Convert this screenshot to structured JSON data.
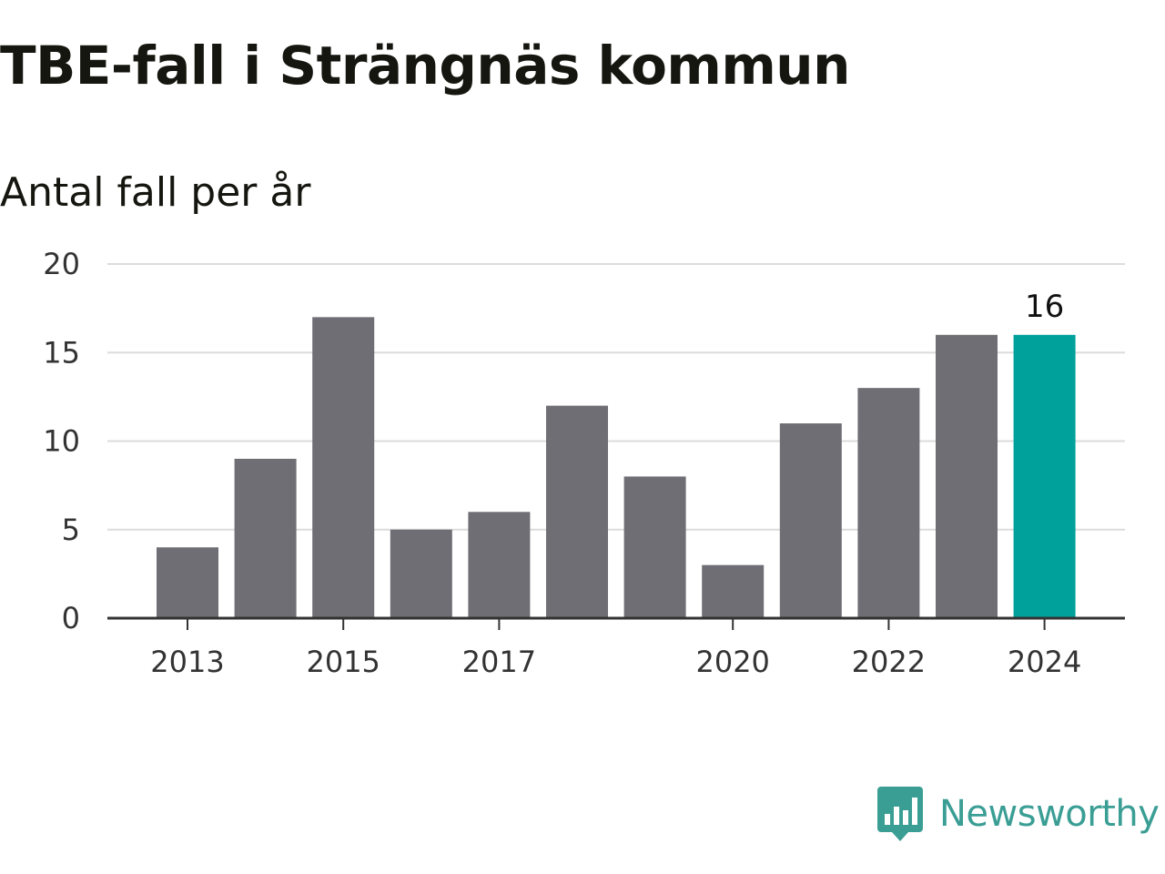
{
  "chart_data": {
    "type": "bar",
    "title": "TBE-fall i Strängnäs kommun",
    "subtitle": "Antal fall per år",
    "xlabel": "",
    "ylabel": "",
    "categories": [
      "2013",
      "2014",
      "2015",
      "2016",
      "2017",
      "2018",
      "2019",
      "2020",
      "2021",
      "2022",
      "2023",
      "2024"
    ],
    "values": [
      4,
      9,
      17,
      5,
      6,
      12,
      8,
      3,
      11,
      13,
      16,
      16
    ],
    "x_tick_labels": [
      "2013",
      "2015",
      "2017",
      "2020",
      "2022",
      "2024"
    ],
    "y_ticks": [
      0,
      5,
      10,
      15,
      20
    ],
    "ylim": [
      0,
      20
    ],
    "grid": true,
    "highlight": {
      "category": "2024",
      "label": "16"
    },
    "colors": {
      "bar": "#6f6e74",
      "highlight": "#00a19a",
      "grid": "#dcdcdc",
      "axis": "#333333"
    }
  },
  "brand": {
    "name": "Newsworthy",
    "icon": "bar-chart-speech-bubble-icon",
    "color": "#3a9e95"
  }
}
